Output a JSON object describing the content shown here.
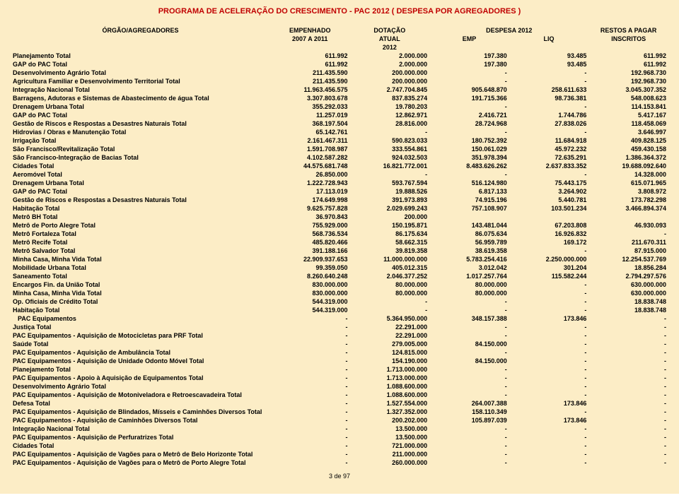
{
  "title": "PROGRAMA DE ACELERAÇÃO DO CRESCIMENTO - PAC  2012 ( DESPESA POR AGREGADORES )",
  "header": {
    "orgao": "ÓRGÃO/AGREGADORES",
    "empenhado": "EMPENHADO",
    "empenhado2": "2007 A 2011",
    "dotacao": "DOTAÇÃO",
    "dotacao2": "ATUAL",
    "dotacao3": "2012",
    "despesa": "DESPESA 2012",
    "emp": "EMP",
    "liq": "LIQ",
    "restos": "RESTOS A PAGAR",
    "restos2": "INSCRITOS"
  },
  "rows": [
    {
      "label": "Planejamento Total",
      "c1": "611.992",
      "c2": "2.000.000",
      "c3": "197.380",
      "c4": "93.485",
      "c5": "611.992"
    },
    {
      "label": "GAP do PAC Total",
      "c1": "611.992",
      "c2": "2.000.000",
      "c3": "197.380",
      "c4": "93.485",
      "c5": "611.992"
    },
    {
      "label": "Desenvolvimento Agrário Total",
      "c1": "211.435.590",
      "c2": "200.000.000",
      "c3": "-",
      "c4": "-",
      "c5": "192.968.730"
    },
    {
      "label": "Agricultura Familiar e Desenvolvimento Territorial Total",
      "c1": "211.435.590",
      "c2": "200.000.000",
      "c3": "-",
      "c4": "-",
      "c5": "192.968.730"
    },
    {
      "label": "Integração Nacional Total",
      "c1": "11.963.456.575",
      "c2": "2.747.704.845",
      "c3": "905.648.870",
      "c4": "258.611.633",
      "c5": "3.045.307.352"
    },
    {
      "label": "Barragens, Adutoras e Sistemas de Abastecimento de água Total",
      "c1": "3.307.803.678",
      "c2": "837.835.274",
      "c3": "191.715.366",
      "c4": "98.736.381",
      "c5": "548.008.623"
    },
    {
      "label": "Drenagem Urbana Total",
      "c1": "355.292.033",
      "c2": "19.780.203",
      "c3": "-",
      "c4": "-",
      "c5": "114.153.841"
    },
    {
      "label": "GAP do PAC Total",
      "c1": "11.257.019",
      "c2": "12.862.971",
      "c3": "2.416.721",
      "c4": "1.744.786",
      "c5": "5.417.167"
    },
    {
      "label": "Gestão de Riscos e Respostas a Desastres Naturais Total",
      "c1": "368.197.504",
      "c2": "28.816.000",
      "c3": "28.724.968",
      "c4": "27.838.026",
      "c5": "118.458.069"
    },
    {
      "label": "Hidrovias / Obras e Manutenção Total",
      "c1": "65.142.761",
      "c2": "-",
      "c3": "-",
      "c4": "-",
      "c5": "3.646.997"
    },
    {
      "label": "Irrigação Total",
      "c1": "2.161.467.311",
      "c2": "590.823.033",
      "c3": "180.752.392",
      "c4": "11.684.918",
      "c5": "409.828.125"
    },
    {
      "label": "São Francisco/Revitalização Total",
      "c1": "1.591.708.987",
      "c2": "333.554.861",
      "c3": "150.061.029",
      "c4": "45.972.232",
      "c5": "459.430.158"
    },
    {
      "label": "São Francisco-Integração de Bacias Total",
      "c1": "4.102.587.282",
      "c2": "924.032.503",
      "c3": "351.978.394",
      "c4": "72.635.291",
      "c5": "1.386.364.372"
    },
    {
      "label": "Cidades Total",
      "c1": "44.575.681.748",
      "c2": "16.821.772.001",
      "c3": "8.483.626.262",
      "c4": "2.637.833.352",
      "c5": "19.688.092.640"
    },
    {
      "label": "Aeromóvel Total",
      "c1": "26.850.000",
      "c2": "-",
      "c3": "-",
      "c4": "-",
      "c5": "14.328.000"
    },
    {
      "label": "Drenagem Urbana Total",
      "c1": "1.222.728.943",
      "c2": "593.767.594",
      "c3": "516.124.980",
      "c4": "75.443.175",
      "c5": "615.071.965"
    },
    {
      "label": "GAP do PAC Total",
      "c1": "17.113.019",
      "c2": "19.888.526",
      "c3": "6.817.133",
      "c4": "3.264.902",
      "c5": "3.808.972"
    },
    {
      "label": "Gestão de Riscos e Respostas a Desastres Naturais Total",
      "c1": "174.649.998",
      "c2": "391.973.893",
      "c3": "74.915.196",
      "c4": "5.440.781",
      "c5": "173.782.298"
    },
    {
      "label": "Habitação Total",
      "c1": "9.625.757.828",
      "c2": "2.029.699.243",
      "c3": "757.108.907",
      "c4": "103.501.234",
      "c5": "3.466.894.374"
    },
    {
      "label": "Metrô BH Total",
      "c1": "36.970.843",
      "c2": "200.000",
      "c3": "",
      "c4": "",
      "c5": ""
    },
    {
      "label": "Metrô de Porto Alegre Total",
      "c1": "755.929.000",
      "c2": "150.195.871",
      "c3": "143.481.044",
      "c4": "67.203.808",
      "c5": "46.930.093"
    },
    {
      "label": "Metrô Fortaleza Total",
      "c1": "568.736.534",
      "c2": "86.175.634",
      "c3": "86.075.634",
      "c4": "16.926.832",
      "c5": "-"
    },
    {
      "label": "Metrô Recife Total",
      "c1": "485.820.466",
      "c2": "58.662.315",
      "c3": "56.959.789",
      "c4": "169.172",
      "c5": "211.670.311"
    },
    {
      "label": "Metrô Salvador Total",
      "c1": "391.188.166",
      "c2": "39.819.358",
      "c3": "38.619.358",
      "c4": "-",
      "c5": "87.915.000"
    },
    {
      "label": "Minha Casa, Minha Vida Total",
      "c1": "22.909.937.653",
      "c2": "11.000.000.000",
      "c3": "5.783.254.416",
      "c4": "2.250.000.000",
      "c5": "12.254.537.769"
    },
    {
      "label": "Mobilidade Urbana Total",
      "c1": "99.359.050",
      "c2": "405.012.315",
      "c3": "3.012.042",
      "c4": "301.204",
      "c5": "18.856.284"
    },
    {
      "label": "Saneamento Total",
      "c1": "8.260.640.248",
      "c2": "2.046.377.252",
      "c3": "1.017.257.764",
      "c4": "115.582.244",
      "c5": "2.794.297.576"
    },
    {
      "label": "Encargos Fin. da União Total",
      "c1": "830.000.000",
      "c2": "80.000.000",
      "c3": "80.000.000",
      "c4": "-",
      "c5": "630.000.000"
    },
    {
      "label": "Minha Casa, Minha Vida Total",
      "c1": "830.000.000",
      "c2": "80.000.000",
      "c3": "80.000.000",
      "c4": "-",
      "c5": "630.000.000"
    },
    {
      "label": "Op. Oficiais de Crédito Total",
      "c1": "544.319.000",
      "c2": "-",
      "c3": "-",
      "c4": "-",
      "c5": "18.838.748"
    },
    {
      "label": "Habitação Total",
      "c1": "544.319.000",
      "c2": "-",
      "c3": "-",
      "c4": "-",
      "c5": "18.838.748"
    },
    {
      "label": "PAC Equipamentos",
      "indent": true,
      "c1": "-",
      "c2": "5.364.950.000",
      "c3": "348.157.388",
      "c4": "173.846",
      "c5": "-"
    },
    {
      "label": "Justiça Total",
      "c1": "-",
      "c2": "22.291.000",
      "c3": "-",
      "c4": "-",
      "c5": "-"
    },
    {
      "label": "PAC Equipamentos - Aquisição de Motocicletas para PRF Total",
      "c1": "-",
      "c2": "22.291.000",
      "c3": "-",
      "c4": "-",
      "c5": "-"
    },
    {
      "label": "Saúde Total",
      "c1": "-",
      "c2": "279.005.000",
      "c3": "84.150.000",
      "c4": "-",
      "c5": "-"
    },
    {
      "label": "PAC Equipamentos - Aquisição de Ambulância Total",
      "c1": "-",
      "c2": "124.815.000",
      "c3": "-",
      "c4": "-",
      "c5": "-"
    },
    {
      "label": "PAC Equipamentos - Aquisição de Unidade Odonto Móvel Total",
      "c1": "-",
      "c2": "154.190.000",
      "c3": "84.150.000",
      "c4": "-",
      "c5": "-"
    },
    {
      "label": "Planejamento Total",
      "c1": "-",
      "c2": "1.713.000.000",
      "c3": "-",
      "c4": "-",
      "c5": "-"
    },
    {
      "label": "PAC Equipamentos - Apoio à Aquisição de Equipamentos Total",
      "c1": "-",
      "c2": "1.713.000.000",
      "c3": "-",
      "c4": "-",
      "c5": "-"
    },
    {
      "label": "Desenvolvimento Agrário Total",
      "c1": "-",
      "c2": "1.088.600.000",
      "c3": "-",
      "c4": "-",
      "c5": "-"
    },
    {
      "label": "PAC Equipamentos - Aquisição de Motoniveladora e Retroescavadeira Total",
      "c1": "-",
      "c2": "1.088.600.000",
      "c3": "-",
      "c4": "-",
      "c5": "-"
    },
    {
      "label": "Defesa Total",
      "c1": "-",
      "c2": "1.527.554.000",
      "c3": "264.007.388",
      "c4": "173.846",
      "c5": "-"
    },
    {
      "label": "PAC Equipamentos - Aquisição de Blindados, Mísseis e Caminhões Diversos Total",
      "c1": "-",
      "c2": "1.327.352.000",
      "c3": "158.110.349",
      "c4": "-",
      "c5": "-"
    },
    {
      "label": "PAC Equipamentos - Aquisição de Caminhões Diversos Total",
      "c1": "-",
      "c2": "200.202.000",
      "c3": "105.897.039",
      "c4": "173.846",
      "c5": "-"
    },
    {
      "label": "Integração Nacional Total",
      "c1": "-",
      "c2": "13.500.000",
      "c3": "-",
      "c4": "-",
      "c5": "-"
    },
    {
      "label": "PAC Equipamentos - Aquisição de Perfuratrizes Total",
      "c1": "-",
      "c2": "13.500.000",
      "c3": "-",
      "c4": "-",
      "c5": "-"
    },
    {
      "label": "Cidades Total",
      "c1": "-",
      "c2": "721.000.000",
      "c3": "-",
      "c4": "-",
      "c5": "-"
    },
    {
      "label": "PAC Equipamentos - Aquisição de Vagões para o Metrô de Belo Horizonte Total",
      "c1": "-",
      "c2": "211.000.000",
      "c3": "-",
      "c4": "-",
      "c5": "-"
    },
    {
      "label": "PAC Equipamentos - Aquisição de Vagões para o Metrô de Porto Alegre Total",
      "c1": "-",
      "c2": "260.000.000",
      "c3": "-",
      "c4": "-",
      "c5": "-"
    }
  ],
  "footer": "3 de 97"
}
